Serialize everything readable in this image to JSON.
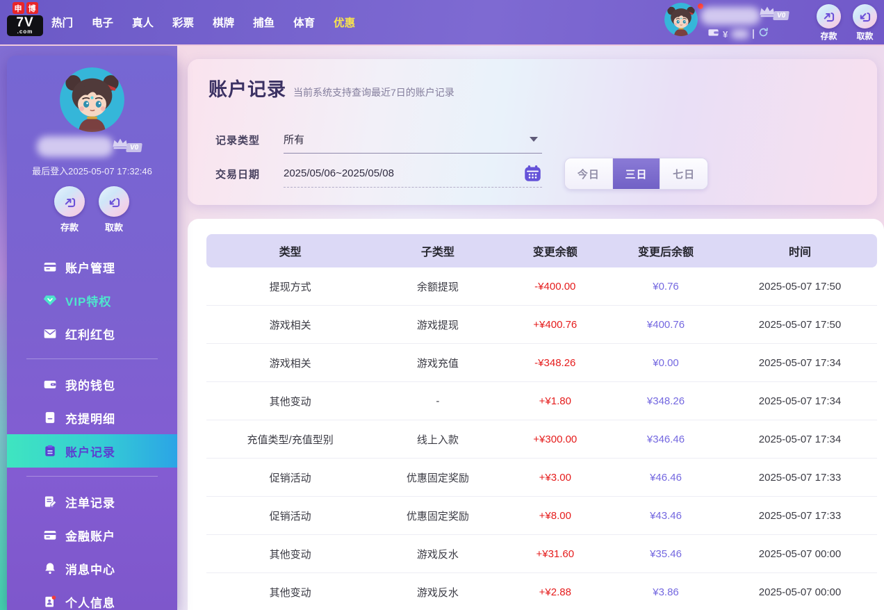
{
  "topbar": {
    "logo": {
      "badge1": "申",
      "badge2": "博",
      "main": "7V",
      "sub": ".com"
    },
    "nav": [
      {
        "label": "热门"
      },
      {
        "label": "电子"
      },
      {
        "label": "真人"
      },
      {
        "label": "彩票"
      },
      {
        "label": "棋牌"
      },
      {
        "label": "捕鱼"
      },
      {
        "label": "体育"
      },
      {
        "label": "优惠",
        "active": true
      }
    ],
    "vip_badge": "V0",
    "currency_symbol": "¥",
    "deposit": "存款",
    "withdraw": "取款"
  },
  "sidebar": {
    "vip_badge": "V0",
    "last_login": "最后登入2025-05-07 17:32:46",
    "deposit": "存款",
    "withdraw": "取款",
    "menu": [
      {
        "id": "account-management",
        "label": "账户管理",
        "icon": "bank-card-icon"
      },
      {
        "id": "vip-privileges",
        "label": "VIP特权",
        "icon": "gem-icon",
        "highlight": true
      },
      {
        "id": "bonus-redpacket",
        "label": "红利红包",
        "icon": "envelope-icon"
      },
      {
        "divider": true
      },
      {
        "id": "my-wallet",
        "label": "我的钱包",
        "icon": "wallet-icon"
      },
      {
        "id": "deposit-withdraw-details",
        "label": "充提明细",
        "icon": "document-icon"
      },
      {
        "id": "account-records",
        "label": "账户记录",
        "icon": "clipboard-icon",
        "active": true
      },
      {
        "divider": true
      },
      {
        "id": "bet-records",
        "label": "注单记录",
        "icon": "note-pen-icon"
      },
      {
        "id": "financial-account",
        "label": "金融账户",
        "icon": "bank-card-icon"
      },
      {
        "id": "message-center",
        "label": "消息中心",
        "icon": "bell-icon"
      },
      {
        "id": "personal-info",
        "label": "个人信息",
        "icon": "person-card-icon",
        "badge_dot": true
      }
    ]
  },
  "main": {
    "title": "账户记录",
    "subtitle": "当前系统支持查询最近7日的账户记录",
    "filters": {
      "record_type_label": "记录类型",
      "record_type_value": "所有",
      "date_label": "交易日期",
      "date_value": "2025/05/06~2025/05/08",
      "range_buttons": [
        {
          "label": "今日"
        },
        {
          "label": "三日",
          "active": true
        },
        {
          "label": "七日"
        }
      ]
    },
    "table": {
      "headers": [
        "类型",
        "子类型",
        "变更余额",
        "变更后余额",
        "时间"
      ],
      "rows": [
        [
          "提现方式",
          "余额提现",
          "-¥400.00",
          "¥0.76",
          "2025-05-07 17:50"
        ],
        [
          "游戏相关",
          "游戏提现",
          "+¥400.76",
          "¥400.76",
          "2025-05-07 17:50"
        ],
        [
          "游戏相关",
          "游戏充值",
          "-¥348.26",
          "¥0.00",
          "2025-05-07 17:34"
        ],
        [
          "其他变动",
          "-",
          "+¥1.80",
          "¥348.26",
          "2025-05-07 17:34"
        ],
        [
          "充值类型/充值型别",
          "线上入款",
          "+¥300.00",
          "¥346.46",
          "2025-05-07 17:34"
        ],
        [
          "促销活动",
          "优惠固定奖励",
          "+¥3.00",
          "¥46.46",
          "2025-05-07 17:33"
        ],
        [
          "促销活动",
          "优惠固定奖励",
          "+¥8.00",
          "¥43.46",
          "2025-05-07 17:33"
        ],
        [
          "其他变动",
          "游戏反水",
          "+¥31.60",
          "¥35.46",
          "2025-05-07 00:00"
        ],
        [
          "其他变动",
          "游戏反水",
          "+¥2.88",
          "¥3.86",
          "2025-05-07 00:00"
        ]
      ]
    }
  },
  "colors": {
    "brand_purple": "#7b68cf",
    "nav_highlight_yellow": "#f8e34e",
    "active_item_gradient": [
      "#3fe5c0",
      "#2ba4e6"
    ],
    "vip_teal": "#4fe6cd",
    "amount_change_red": "#e51c1c",
    "balance_purple": "#7468e0",
    "table_header_bg": "#dcd9f6",
    "logo_red": "#e82629"
  }
}
